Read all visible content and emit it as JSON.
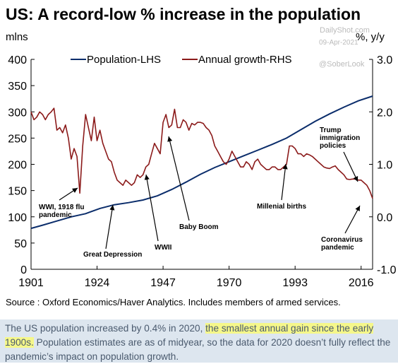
{
  "title": "US: A record-low % increase in the population",
  "watermark": {
    "site": "DailyShot.com",
    "date": "09-Apr-2021",
    "handle": "@SoberLook"
  },
  "source": "Source : Oxford Economics/Haver Analytics. Includes members of armed services.",
  "caption": {
    "before": "The US population increased by 0.4% in 2020, ",
    "highlight": "the smallest annual gain since the early 1900s.",
    "after": " Population estimates are as of midyear, so the data for 2020 doesn’t fully reflect the pandemic’s impact on population growth."
  },
  "colors": {
    "population": "#0b2d6b",
    "growth": "#8b1a1a",
    "axis": "#000000",
    "caption_bg": "#dde6ef",
    "highlight": "#f5f78a"
  },
  "chart_data": {
    "type": "line",
    "left_axis": {
      "label": "mlns",
      "min": 0,
      "max": 400,
      "ticks": [
        0,
        50,
        100,
        150,
        200,
        250,
        300,
        350,
        400
      ]
    },
    "right_axis": {
      "label": "%, y/y",
      "min": -1.0,
      "max": 3.0,
      "ticks": [
        "-1.0",
        "0.0",
        "1.0",
        "2.0",
        "3.0"
      ],
      "tick_values": [
        -1,
        0,
        1,
        2,
        3
      ]
    },
    "x_axis": {
      "min": 1901,
      "max": 2020,
      "ticks": [
        1901,
        1924,
        1947,
        1970,
        1993,
        2016
      ]
    },
    "legend": {
      "placement": "top",
      "entries": [
        "Population-LHS",
        "Annual growth-RHS"
      ]
    },
    "series": [
      {
        "name": "Population-LHS",
        "axis": "left",
        "x": [
          1901,
          1905,
          1910,
          1915,
          1920,
          1925,
          1930,
          1935,
          1940,
          1945,
          1950,
          1955,
          1960,
          1965,
          1970,
          1975,
          1980,
          1985,
          1990,
          1995,
          2000,
          2005,
          2010,
          2015,
          2020
        ],
        "values": [
          78,
          84,
          92,
          100,
          106,
          116,
          123,
          127,
          132,
          140,
          152,
          166,
          181,
          194,
          205,
          216,
          227,
          238,
          250,
          266,
          282,
          296,
          309,
          321,
          330
        ]
      },
      {
        "name": "Annual growth-RHS",
        "axis": "right",
        "x": [
          1901,
          1902,
          1903,
          1904,
          1905,
          1906,
          1907,
          1908,
          1909,
          1910,
          1911,
          1912,
          1913,
          1914,
          1915,
          1916,
          1917,
          1918,
          1919,
          1920,
          1921,
          1922,
          1923,
          1924,
          1925,
          1926,
          1927,
          1928,
          1929,
          1930,
          1931,
          1932,
          1933,
          1934,
          1935,
          1936,
          1937,
          1938,
          1939,
          1940,
          1941,
          1942,
          1943,
          1944,
          1945,
          1946,
          1947,
          1948,
          1949,
          1950,
          1951,
          1952,
          1953,
          1954,
          1955,
          1956,
          1957,
          1958,
          1959,
          1960,
          1961,
          1962,
          1963,
          1964,
          1965,
          1966,
          1967,
          1968,
          1969,
          1970,
          1971,
          1972,
          1973,
          1974,
          1975,
          1976,
          1977,
          1978,
          1979,
          1980,
          1981,
          1982,
          1983,
          1984,
          1985,
          1986,
          1987,
          1988,
          1989,
          1990,
          1991,
          1992,
          1993,
          1994,
          1995,
          1996,
          1997,
          1998,
          1999,
          2000,
          2001,
          2002,
          2003,
          2004,
          2005,
          2006,
          2007,
          2008,
          2009,
          2010,
          2011,
          2012,
          2013,
          2014,
          2015,
          2016,
          2017,
          2018,
          2019,
          2020
        ],
        "values": [
          2.0,
          1.85,
          1.9,
          2.0,
          1.95,
          1.85,
          1.95,
          2.0,
          2.07,
          1.65,
          1.7,
          1.6,
          1.75,
          1.5,
          1.1,
          1.3,
          1.15,
          0.45,
          1.35,
          1.95,
          1.7,
          1.45,
          1.9,
          1.45,
          1.65,
          1.4,
          1.25,
          1.1,
          1.05,
          0.85,
          0.7,
          0.65,
          0.6,
          0.7,
          0.65,
          0.6,
          0.65,
          0.8,
          0.75,
          0.8,
          0.95,
          1.0,
          1.2,
          1.4,
          1.3,
          1.2,
          1.8,
          1.95,
          1.7,
          1.75,
          2.05,
          1.7,
          1.7,
          1.85,
          1.8,
          1.65,
          1.78,
          1.75,
          1.8,
          1.8,
          1.78,
          1.7,
          1.65,
          1.55,
          1.35,
          1.25,
          1.15,
          1.05,
          1.0,
          1.1,
          1.25,
          1.15,
          1.05,
          0.95,
          0.95,
          1.05,
          1.0,
          0.9,
          1.05,
          1.1,
          1.0,
          0.95,
          0.9,
          0.9,
          0.95,
          0.95,
          0.9,
          0.9,
          0.95,
          1.0,
          1.35,
          1.35,
          1.3,
          1.2,
          1.2,
          1.15,
          1.2,
          1.18,
          1.15,
          1.1,
          1.05,
          1.0,
          0.95,
          0.93,
          0.92,
          0.95,
          0.97,
          0.9,
          0.85,
          0.8,
          0.72,
          0.71,
          0.72,
          0.72,
          0.7,
          0.7,
          0.65,
          0.6,
          0.5,
          0.35
        ]
      }
    ],
    "annotations": [
      {
        "text": [
          "WWI, 1918 flu",
          "pandemic"
        ],
        "x": 1918
      },
      {
        "text": [
          "Great Depression"
        ],
        "x": 1933
      },
      {
        "text": [
          "WWII"
        ],
        "x": 1943
      },
      {
        "text": [
          "Baby Boom"
        ],
        "x": 1957
      },
      {
        "text": [
          "Millenial births"
        ],
        "x": 1990
      },
      {
        "text": [
          "Trump",
          "immigration",
          "policies"
        ],
        "x": 2017
      },
      {
        "text": [
          "Coronavirus",
          "pandemic"
        ],
        "x": 2020
      }
    ]
  }
}
